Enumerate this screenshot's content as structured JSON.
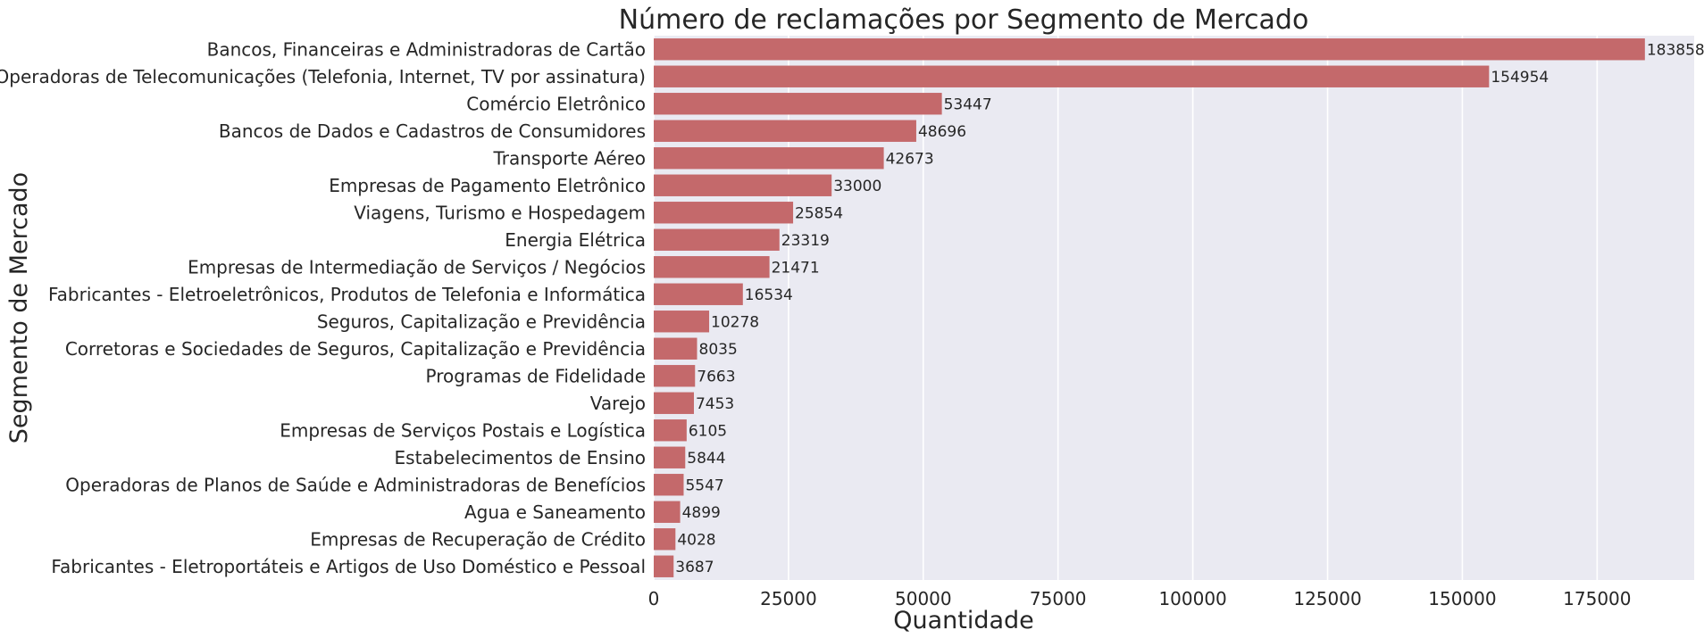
{
  "chart_data": {
    "type": "bar",
    "orientation": "horizontal",
    "title": "Número de reclamações por Segmento de Mercado",
    "xlabel": "Quantidade",
    "ylabel": "Segmento de Mercado",
    "xlim": [
      0,
      193000
    ],
    "x_ticks": [
      0,
      25000,
      50000,
      75000,
      100000,
      125000,
      150000,
      175000
    ],
    "x_tick_labels": [
      "0",
      "25000",
      "50000",
      "75000",
      "100000",
      "125000",
      "150000",
      "175000"
    ],
    "grid": true,
    "bar_color": "#c4696b",
    "background_color": "#eaeaf2",
    "grid_color": "#ffffff",
    "categories": [
      "Bancos, Financeiras e Administradoras de Cartão",
      "Operadoras de Telecomunicações (Telefonia, Internet, TV por assinatura)",
      "Comércio Eletrônico",
      "Bancos de Dados e Cadastros de Consumidores",
      "Transporte Aéreo",
      "Empresas de Pagamento Eletrônico",
      "Viagens, Turismo e Hospedagem",
      "Energia Elétrica",
      "Empresas de Intermediação de Serviços / Negócios",
      "Fabricantes - Eletroeletrônicos,  Produtos de Telefonia e Informática",
      "Seguros, Capitalização e Previdência",
      "Corretoras e Sociedades de Seguros, Capitalização e Previdência",
      "Programas de Fidelidade",
      "Varejo",
      "Empresas de Serviços Postais e Logística",
      "Estabelecimentos de Ensino",
      "Operadoras de Planos de Saúde e Administradoras de Benefícios",
      "Agua e Saneamento",
      "Empresas de Recuperação de Crédito",
      "Fabricantes - Eletroportáteis e Artigos de Uso Doméstico e Pessoal"
    ],
    "values": [
      183858,
      154954,
      53447,
      48696,
      42673,
      33000,
      25854,
      23319,
      21471,
      16534,
      10278,
      8035,
      7663,
      7453,
      6105,
      5844,
      5547,
      4899,
      4028,
      3687
    ],
    "value_labels": [
      "183858",
      "154954",
      "53447",
      "48696",
      "42673",
      "33000",
      "25854",
      "23319",
      "21471",
      "16534",
      "10278",
      "8035",
      "7663",
      "7453",
      "6105",
      "5844",
      "5547",
      "4899",
      "4028",
      "3687"
    ]
  }
}
